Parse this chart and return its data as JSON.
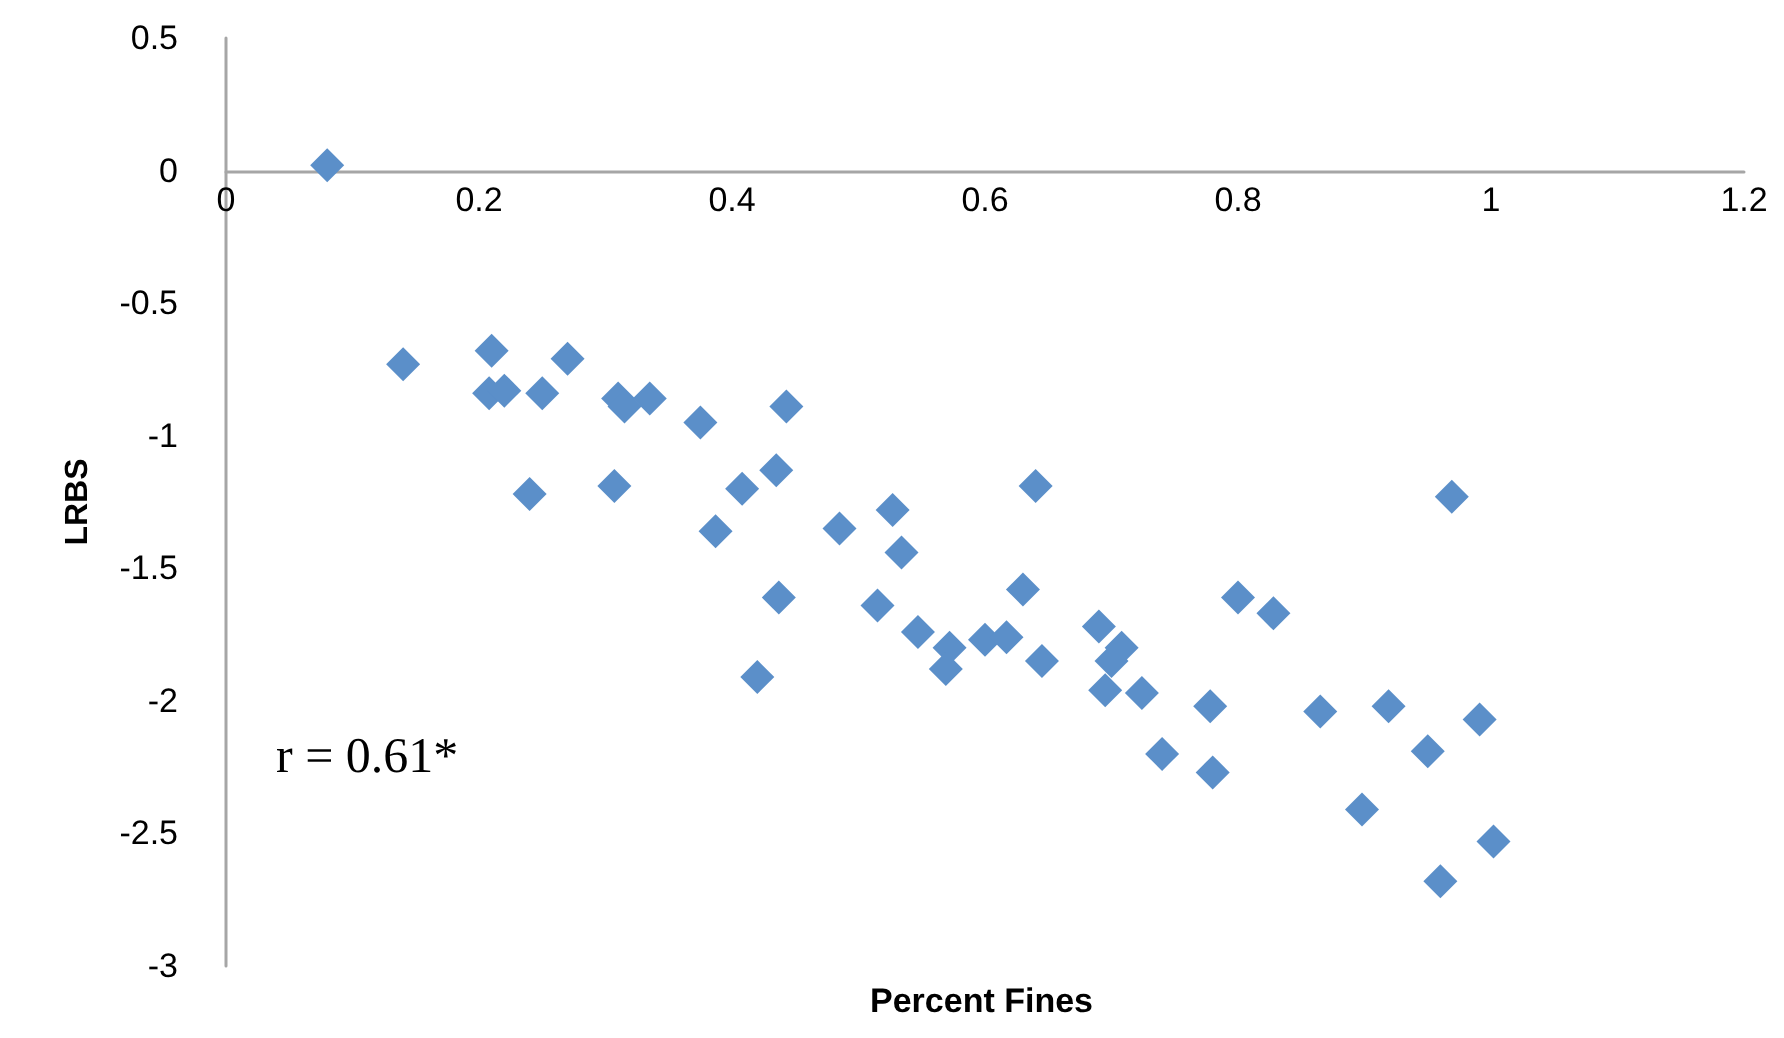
{
  "chart_data": {
    "type": "scatter",
    "xlabel": "Percent Fines",
    "ylabel": "LRBS",
    "annotations": [
      "r = 0.61*"
    ],
    "xlim": [
      0,
      1.2
    ],
    "xticks": [
      0,
      0.2,
      0.4,
      0.6,
      0.8,
      1,
      1.2
    ],
    "ylim": [
      -3,
      0.5
    ],
    "yticks": [
      -3,
      -2.5,
      -2,
      -1.5,
      -1,
      -0.5,
      0,
      0.5
    ],
    "grid": false,
    "marker": "diamond",
    "series": [
      {
        "color": "#5b8fc9",
        "x": [
          0.08,
          0.14,
          0.21,
          0.208,
          0.22,
          0.24,
          0.25,
          0.27,
          0.31,
          0.315,
          0.335,
          0.307,
          0.375,
          0.443,
          0.387,
          0.408,
          0.435,
          0.437,
          0.42,
          0.485,
          0.515,
          0.527,
          0.534,
          0.547,
          0.572,
          0.569,
          0.6,
          0.617,
          0.63,
          0.64,
          0.645,
          0.69,
          0.695,
          0.7,
          0.708,
          0.724,
          0.74,
          0.778,
          0.78,
          0.8,
          0.828,
          0.865,
          0.919,
          0.898,
          0.95,
          0.96,
          0.969,
          0.991,
          1.002
        ],
        "values": [
          0.02,
          -0.73,
          -0.68,
          -0.84,
          -0.83,
          -1.22,
          -0.84,
          -0.71,
          -0.86,
          -0.89,
          -0.86,
          -1.19,
          -0.95,
          -0.89,
          -1.36,
          -1.2,
          -1.13,
          -1.61,
          -1.91,
          -1.35,
          -1.64,
          -1.28,
          -1.44,
          -1.74,
          -1.8,
          -1.88,
          -1.77,
          -1.76,
          -1.58,
          -1.19,
          -1.85,
          -1.72,
          -1.96,
          -1.85,
          -1.8,
          -1.97,
          -2.2,
          -2.02,
          -2.27,
          -1.61,
          -1.67,
          -2.04,
          -2.02,
          -2.41,
          -2.19,
          -2.68,
          -1.23,
          -2.07,
          -2.53
        ]
      }
    ]
  }
}
